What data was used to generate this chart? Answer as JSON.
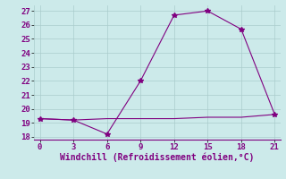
{
  "line1_x": [
    0,
    3,
    6,
    9,
    12,
    15,
    18,
    21
  ],
  "line1_y": [
    19.3,
    19.2,
    18.2,
    22.0,
    26.7,
    27.0,
    25.7,
    19.6
  ],
  "line2_x": [
    0,
    3,
    6,
    9,
    12,
    15,
    18,
    21
  ],
  "line2_y": [
    19.3,
    19.2,
    19.3,
    19.3,
    19.3,
    19.4,
    19.4,
    19.6
  ],
  "line_color": "#800080",
  "marker": "*",
  "marker_size": 4,
  "linewidth": 0.8,
  "xlim": [
    -0.5,
    21.5
  ],
  "ylim": [
    17.8,
    27.4
  ],
  "yticks": [
    18,
    19,
    20,
    21,
    22,
    23,
    24,
    25,
    26,
    27
  ],
  "xticks": [
    0,
    3,
    6,
    9,
    12,
    15,
    18,
    21
  ],
  "xlabel": "Windchill (Refroidissement éolien,°C)",
  "bg_color": "#cceaea",
  "grid_color": "#aacccc",
  "label_fontsize": 7,
  "tick_fontsize": 6.5
}
